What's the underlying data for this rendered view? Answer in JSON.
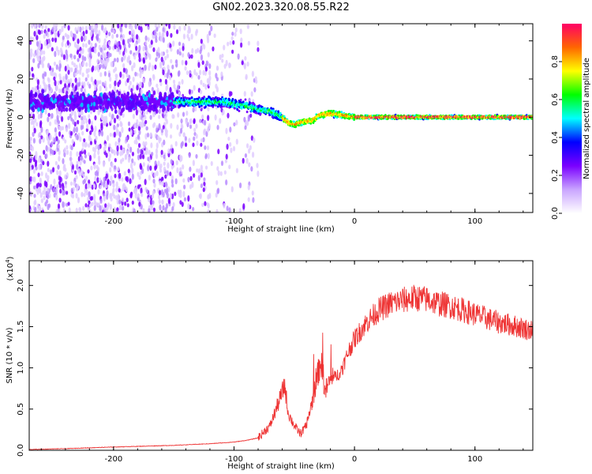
{
  "title": "GN02.2023.320.08.55.R22",
  "chart_data": [
    {
      "type": "heatmap",
      "xlabel": "Height of straight line (km)",
      "ylabel": "Frequency (Hz)",
      "xlim": [
        -270,
        148
      ],
      "ylim": [
        -50,
        49
      ],
      "xticks": [
        -200,
        -100,
        0,
        100
      ],
      "yticks": [
        -40,
        -20,
        0,
        20,
        40
      ],
      "colorbar": {
        "label": "Normalized spectral amplitude",
        "range": [
          0,
          1
        ],
        "ticks": [
          "0.0",
          "0.2",
          "0.4",
          "0.6",
          "0.8"
        ],
        "colormap": [
          "#ffffff",
          "#c9a5ff",
          "#7a00ff",
          "#0000ff",
          "#00ffff",
          "#00ff00",
          "#ffff00",
          "#ff6600",
          "#ff0066"
        ]
      },
      "ridge": {
        "x": [
          -150,
          -130,
          -110,
          -100,
          -90,
          -80,
          -70,
          -60,
          -55,
          -50,
          -45,
          -40,
          -35,
          -30,
          -20,
          -10,
          0,
          50,
          100,
          148
        ],
        "y": [
          8,
          8,
          8,
          7,
          6,
          4,
          3,
          0,
          -3,
          -4,
          -3,
          -2,
          -2,
          1,
          2,
          1,
          0,
          0,
          0,
          0
        ]
      }
    },
    {
      "type": "line",
      "xlabel": "Height of straight line (km)",
      "ylabel": "SNR (10 * v/v)",
      "yexponent": "(x10",
      "yexponent_power": "4",
      "yexponent_close": ")",
      "xlim": [
        -270,
        148
      ],
      "ylim": [
        0,
        2.3
      ],
      "xticks": [
        -200,
        -100,
        0,
        100
      ],
      "yticks": [
        "0.0",
        "0.5",
        "1.0",
        "1.5",
        "2.0"
      ],
      "series": [
        {
          "color": "#ee3333",
          "x": [
            -270,
            -240,
            -200,
            -150,
            -120,
            -100,
            -90,
            -80,
            -70,
            -65,
            -60,
            -58,
            -55,
            -50,
            -45,
            -40,
            -35,
            -30,
            -28,
            -25,
            -20,
            -15,
            -10,
            -5,
            0,
            10,
            20,
            30,
            40,
            50,
            60,
            70,
            80,
            90,
            100,
            110,
            120,
            130,
            140,
            148
          ],
          "y": [
            0.01,
            0.02,
            0.04,
            0.06,
            0.08,
            0.1,
            0.12,
            0.15,
            0.3,
            0.5,
            0.7,
            0.8,
            0.45,
            0.3,
            0.2,
            0.3,
            0.6,
            0.95,
            1.1,
            0.7,
            0.85,
            0.9,
            1.0,
            1.2,
            1.35,
            1.55,
            1.7,
            1.78,
            1.82,
            1.85,
            1.83,
            1.78,
            1.75,
            1.7,
            1.65,
            1.6,
            1.55,
            1.52,
            1.48,
            1.45
          ]
        }
      ]
    }
  ]
}
